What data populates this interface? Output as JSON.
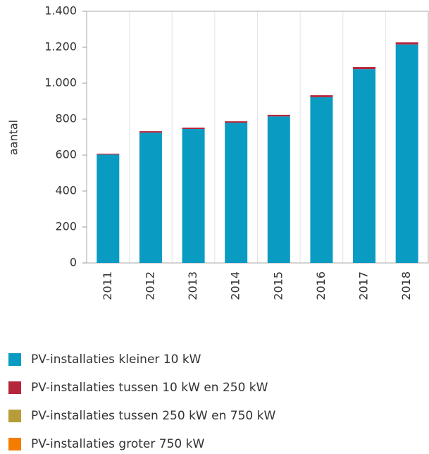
{
  "chart_data": {
    "type": "stacked_bar",
    "ylabel": "aantal",
    "categories": [
      "2011",
      "2012",
      "2013",
      "2014",
      "2015",
      "2016",
      "2017",
      "2018"
    ],
    "series": [
      {
        "name": "PV-installaties kleiner 10 kW",
        "color": "#0a9bc3",
        "values": [
          603,
          725,
          745,
          780,
          815,
          922,
          1078,
          1215
        ]
      },
      {
        "name": "PV-installaties tussen 10 kW en 250 kW",
        "color": "#b5263d",
        "values": [
          5,
          8,
          8,
          8,
          9,
          11,
          12,
          12
        ]
      },
      {
        "name": "PV-installaties tussen 250 kW en 750 kW",
        "color": "#b79c3a",
        "values": [
          0,
          0,
          0,
          0,
          0,
          0,
          0,
          0
        ]
      },
      {
        "name": "PV-installaties groter 750 kW",
        "color": "#f47c00",
        "values": [
          0,
          0,
          0,
          0,
          0,
          0,
          0,
          0
        ]
      }
    ],
    "ylim": [
      0,
      1400
    ],
    "yticks": [
      0,
      200,
      400,
      600,
      800,
      {
        "value": 1000,
        "label": "1.000"
      },
      {
        "value": 1200,
        "label": "1.200"
      },
      {
        "value": 1400,
        "label": "1.400"
      }
    ],
    "grid": true
  }
}
